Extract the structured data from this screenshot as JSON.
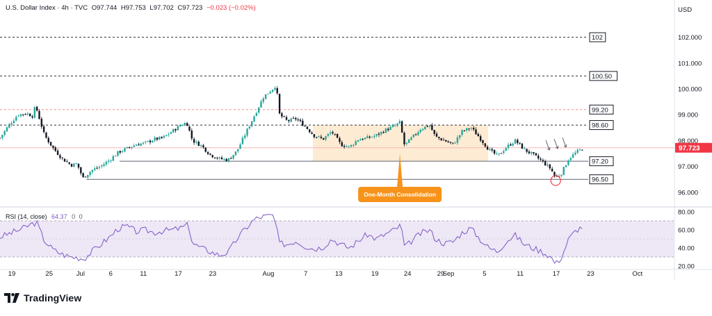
{
  "header": {
    "symbol": "U.S. Dollar Index · 4h · TVC",
    "open_label": "O",
    "open": "97.744",
    "high_label": "H",
    "high": "97.753",
    "low_label": "L",
    "low": "97.702",
    "close_label": "C",
    "close": "97.723",
    "change": "−0.023 (−0.02%)"
  },
  "currency_label": "USD",
  "logo_text": "TradingView",
  "colors": {
    "up": "#26a69a",
    "down": "#ef5350",
    "dark": "#131722",
    "rsi_line": "#7e57c2",
    "rsi_band": "#ede7f6",
    "consolidation_box": "#fdebd3",
    "callout": "#f7931a",
    "price_badge": "#f23645",
    "level_line": "#5d606b",
    "dashed_red": "#f28b8b"
  },
  "chart_data": [
    {
      "type": "candlestick",
      "title": "U.S. Dollar Index · 4h · TVC",
      "ylim": [
        95.7,
        103.0
      ],
      "yticks": [
        "102.000",
        "101.000",
        "100.000",
        "99.000",
        "98.000",
        "97.000",
        "96.000"
      ],
      "xlim": [
        0,
        100
      ],
      "xticks": [
        {
          "label": "19",
          "x": 2.0
        },
        {
          "label": "25",
          "x": 8.3
        },
        {
          "label": "Jul",
          "x": 13.6
        },
        {
          "label": "6",
          "x": 18.7
        },
        {
          "label": "11",
          "x": 24.2
        },
        {
          "label": "17",
          "x": 30.1
        },
        {
          "label": "23",
          "x": 35.9
        },
        {
          "label": "Aug",
          "x": 45.3
        },
        {
          "label": "7",
          "x": 51.6
        },
        {
          "label": "13",
          "x": 57.2
        },
        {
          "label": "19",
          "x": 63.3
        },
        {
          "label": "24",
          "x": 68.8
        },
        {
          "label": "29",
          "x": 74.4
        },
        {
          "label": "Sep",
          "x": 75.7
        },
        {
          "label": "5",
          "x": 81.8
        },
        {
          "label": "11",
          "x": 87.8
        },
        {
          "label": "17",
          "x": 93.9
        },
        {
          "label": "23",
          "x": 99.7
        },
        {
          "label": "Oct",
          "x": 107.6
        }
      ],
      "price_path": [
        [
          0,
          98.1
        ],
        [
          1.5,
          98.6
        ],
        [
          3,
          99.0
        ],
        [
          4.5,
          99.05
        ],
        [
          5.5,
          98.95
        ],
        [
          6,
          99.35
        ],
        [
          7.5,
          98.2
        ],
        [
          9,
          97.7
        ],
        [
          10.5,
          97.3
        ],
        [
          12,
          97.05
        ],
        [
          13,
          97.1
        ],
        [
          14,
          96.55
        ],
        [
          15.5,
          96.85
        ],
        [
          17,
          97.0
        ],
        [
          18.5,
          97.25
        ],
        [
          20,
          97.55
        ],
        [
          21.5,
          97.7
        ],
        [
          23,
          97.85
        ],
        [
          24.5,
          97.9
        ],
        [
          26,
          98.05
        ],
        [
          27.5,
          98.1
        ],
        [
          29,
          98.35
        ],
        [
          30.5,
          98.6
        ],
        [
          31.5,
          98.7
        ],
        [
          32.5,
          98.0
        ],
        [
          34,
          97.8
        ],
        [
          35.5,
          97.45
        ],
        [
          37,
          97.3
        ],
        [
          38.5,
          97.25
        ],
        [
          40,
          97.6
        ],
        [
          41.5,
          98.3
        ],
        [
          43,
          99.0
        ],
        [
          44.5,
          99.7
        ],
        [
          46,
          100.0
        ],
        [
          46.6,
          100.15
        ],
        [
          47.2,
          99.0
        ],
        [
          48.5,
          98.75
        ],
        [
          50,
          98.85
        ],
        [
          51.5,
          98.55
        ],
        [
          53,
          98.2
        ],
        [
          54.5,
          98.05
        ],
        [
          56,
          98.35
        ],
        [
          57.5,
          97.85
        ],
        [
          59,
          97.75
        ],
        [
          60.5,
          98.05
        ],
        [
          62,
          98.1
        ],
        [
          63.5,
          98.2
        ],
        [
          65,
          98.4
        ],
        [
          66.5,
          98.55
        ],
        [
          67.5,
          98.7
        ],
        [
          68.3,
          97.8
        ],
        [
          69.5,
          98.1
        ],
        [
          71,
          98.45
        ],
        [
          72.5,
          98.6
        ],
        [
          73.5,
          98.15
        ],
        [
          75,
          98.0
        ],
        [
          76.5,
          97.85
        ],
        [
          78,
          98.35
        ],
        [
          79.5,
          98.5
        ],
        [
          81,
          98.1
        ],
        [
          82.5,
          97.65
        ],
        [
          84,
          97.4
        ],
        [
          85.5,
          97.75
        ],
        [
          87,
          98.0
        ],
        [
          88.5,
          97.65
        ],
        [
          90,
          97.45
        ],
        [
          91.5,
          97.2
        ],
        [
          93,
          96.9
        ],
        [
          93.8,
          96.55
        ],
        [
          94.8,
          96.75
        ],
        [
          96,
          97.3
        ],
        [
          97.3,
          97.55
        ],
        [
          98.6,
          97.723
        ]
      ],
      "levels": [
        {
          "label": "102",
          "price": 102.0,
          "style": "dashed"
        },
        {
          "label": "100.50",
          "price": 100.5,
          "style": "dashed"
        },
        {
          "label": "99.20",
          "price": 99.2,
          "style": "dashed-red"
        },
        {
          "label": "98.60",
          "price": 98.6,
          "style": "dashed"
        },
        {
          "label": "97.20",
          "price": 97.2,
          "style": "solid",
          "from": 20.2
        },
        {
          "label": "96.50",
          "price": 96.5,
          "style": "solid",
          "from": 14.6
        }
      ],
      "last_price": {
        "label": "97.723",
        "price": 97.723
      },
      "consolidation_zone": {
        "x0": 52.8,
        "x1": 82.4,
        "top": 98.6,
        "bottom": 97.2
      },
      "annotation": {
        "text": "One-Month Consolidation",
        "x": 67.5,
        "price": 97.7
      },
      "circle_marker": {
        "x": 93.8,
        "price": 96.45
      },
      "arrow_markers": [
        92.5,
        93.9,
        95.3
      ]
    },
    {
      "type": "line",
      "title": "RSI (14, close)",
      "value_label": "64.37",
      "extra_labels": [
        "0",
        "0"
      ],
      "ylim": [
        20,
        80
      ],
      "yticks": [
        "80.00",
        "60.00",
        "40.00",
        "20.00"
      ],
      "band": [
        30,
        70
      ],
      "midline": 50,
      "values": [
        [
          0,
          52
        ],
        [
          2,
          57
        ],
        [
          4,
          62
        ],
        [
          5.5,
          67
        ],
        [
          6.2,
          68
        ],
        [
          7.5,
          48
        ],
        [
          9,
          38
        ],
        [
          10.5,
          33
        ],
        [
          12,
          30
        ],
        [
          13.5,
          29
        ],
        [
          14.2,
          28
        ],
        [
          15.5,
          36
        ],
        [
          17,
          44
        ],
        [
          18.5,
          52
        ],
        [
          20,
          62
        ],
        [
          21.5,
          64
        ],
        [
          23,
          58
        ],
        [
          24.5,
          60
        ],
        [
          26,
          57
        ],
        [
          27.5,
          59
        ],
        [
          29,
          60
        ],
        [
          30.5,
          62
        ],
        [
          31.8,
          66
        ],
        [
          32.5,
          45
        ],
        [
          34,
          40
        ],
        [
          35.5,
          36
        ],
        [
          37,
          32
        ],
        [
          38.5,
          35
        ],
        [
          40,
          50
        ],
        [
          41.5,
          62
        ],
        [
          43,
          72
        ],
        [
          44.5,
          75
        ],
        [
          46.2,
          76
        ],
        [
          47.2,
          45
        ],
        [
          48.5,
          44
        ],
        [
          50,
          48
        ],
        [
          51.5,
          42
        ],
        [
          53,
          39
        ],
        [
          54.5,
          41
        ],
        [
          56,
          50
        ],
        [
          57.5,
          44
        ],
        [
          59,
          40
        ],
        [
          60.5,
          48
        ],
        [
          62,
          55
        ],
        [
          63.5,
          50
        ],
        [
          65,
          55
        ],
        [
          66.5,
          60
        ],
        [
          67.7,
          65
        ],
        [
          68.3,
          40
        ],
        [
          69.5,
          48
        ],
        [
          71,
          56
        ],
        [
          72.5,
          60
        ],
        [
          73.5,
          50
        ],
        [
          75,
          45
        ],
        [
          76.5,
          47
        ],
        [
          78,
          57
        ],
        [
          79.5,
          62
        ],
        [
          81,
          50
        ],
        [
          82.5,
          40
        ],
        [
          84,
          36
        ],
        [
          85.5,
          48
        ],
        [
          87,
          54
        ],
        [
          88.5,
          44
        ],
        [
          90,
          40
        ],
        [
          91.5,
          36
        ],
        [
          93,
          30
        ],
        [
          93.8,
          22
        ],
        [
          94.8,
          30
        ],
        [
          96,
          50
        ],
        [
          97.3,
          60
        ],
        [
          98.6,
          64.37
        ]
      ]
    }
  ]
}
